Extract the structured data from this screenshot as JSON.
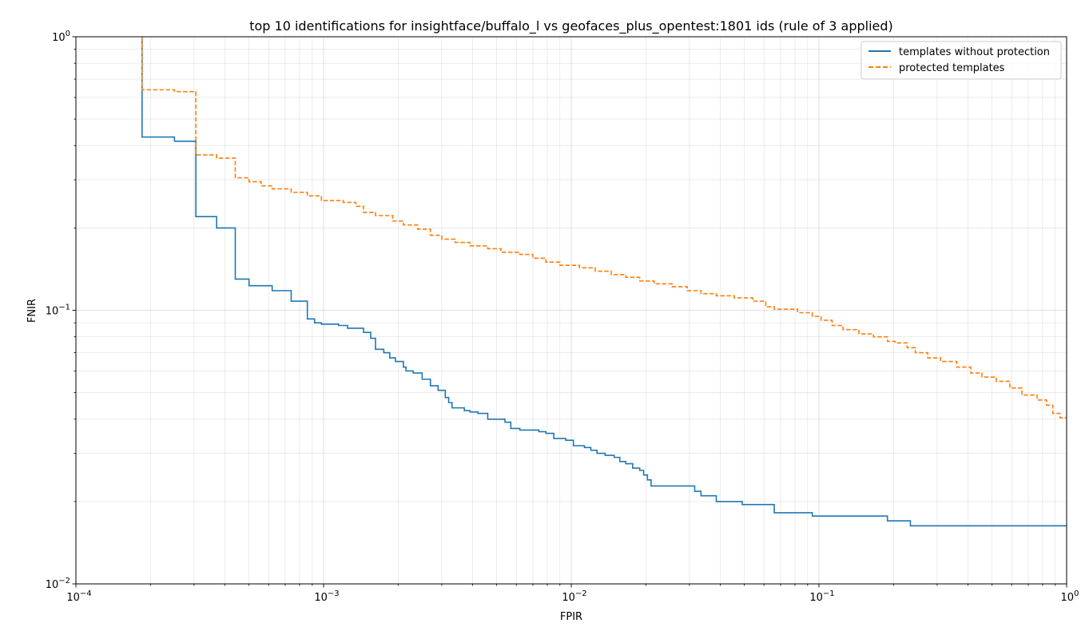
{
  "chart_data": {
    "type": "line",
    "title": "top 10 identifications for insightface/buffalo_l vs geofaces_plus_opentest:1801 ids (rule of 3 applied)",
    "xlabel": "FPIR",
    "ylabel": "FNIR",
    "xscale": "log",
    "yscale": "log",
    "xlim": [
      0.0001,
      1
    ],
    "ylim": [
      0.01,
      1
    ],
    "grid": true,
    "legend_position": "top-right",
    "x_ticks": [
      {
        "value": 0.0001,
        "base": "10",
        "exp": "−4"
      },
      {
        "value": 0.001,
        "base": "10",
        "exp": "−3"
      },
      {
        "value": 0.01,
        "base": "10",
        "exp": "−2"
      },
      {
        "value": 0.1,
        "base": "10",
        "exp": "−1"
      },
      {
        "value": 1,
        "base": "10",
        "exp": "0"
      }
    ],
    "y_ticks": [
      {
        "value": 0.01,
        "base": "10",
        "exp": "−2"
      },
      {
        "value": 0.1,
        "base": "10",
        "exp": "−1"
      },
      {
        "value": 1,
        "base": "10",
        "exp": "0"
      }
    ],
    "series": [
      {
        "name": "templates without protection",
        "color": "#1f77b4",
        "style": "solid",
        "points": [
          [
            0.000185,
            1.0
          ],
          [
            0.000185,
            0.43
          ],
          [
            0.00025,
            0.43
          ],
          [
            0.00025,
            0.415
          ],
          [
            0.000305,
            0.415
          ],
          [
            0.000305,
            0.22
          ],
          [
            0.00037,
            0.22
          ],
          [
            0.00037,
            0.2
          ],
          [
            0.00044,
            0.2
          ],
          [
            0.00044,
            0.13
          ],
          [
            0.0005,
            0.13
          ],
          [
            0.0005,
            0.123
          ],
          [
            0.00062,
            0.123
          ],
          [
            0.00062,
            0.118
          ],
          [
            0.00074,
            0.118
          ],
          [
            0.00074,
            0.108
          ],
          [
            0.00086,
            0.108
          ],
          [
            0.00086,
            0.093
          ],
          [
            0.00092,
            0.093
          ],
          [
            0.00092,
            0.09
          ],
          [
            0.00098,
            0.09
          ],
          [
            0.00098,
            0.089
          ],
          [
            0.00115,
            0.089
          ],
          [
            0.00115,
            0.088
          ],
          [
            0.00125,
            0.088
          ],
          [
            0.00125,
            0.086
          ],
          [
            0.00145,
            0.086
          ],
          [
            0.00145,
            0.083
          ],
          [
            0.00155,
            0.083
          ],
          [
            0.00155,
            0.079
          ],
          [
            0.00162,
            0.079
          ],
          [
            0.00162,
            0.072
          ],
          [
            0.00175,
            0.072
          ],
          [
            0.00175,
            0.07
          ],
          [
            0.00185,
            0.07
          ],
          [
            0.00185,
            0.067
          ],
          [
            0.00195,
            0.067
          ],
          [
            0.00195,
            0.065
          ],
          [
            0.0021,
            0.065
          ],
          [
            0.0021,
            0.062
          ],
          [
            0.00215,
            0.062
          ],
          [
            0.00215,
            0.06
          ],
          [
            0.0023,
            0.06
          ],
          [
            0.0023,
            0.059
          ],
          [
            0.0025,
            0.059
          ],
          [
            0.0025,
            0.056
          ],
          [
            0.0027,
            0.056
          ],
          [
            0.0027,
            0.053
          ],
          [
            0.0029,
            0.053
          ],
          [
            0.0029,
            0.051
          ],
          [
            0.0031,
            0.051
          ],
          [
            0.0031,
            0.048
          ],
          [
            0.0032,
            0.048
          ],
          [
            0.0032,
            0.046
          ],
          [
            0.0033,
            0.046
          ],
          [
            0.0033,
            0.044
          ],
          [
            0.0037,
            0.044
          ],
          [
            0.0037,
            0.043
          ],
          [
            0.0039,
            0.043
          ],
          [
            0.0039,
            0.0425
          ],
          [
            0.0042,
            0.0425
          ],
          [
            0.0042,
            0.042
          ],
          [
            0.0046,
            0.042
          ],
          [
            0.0046,
            0.04
          ],
          [
            0.0054,
            0.04
          ],
          [
            0.0054,
            0.039
          ],
          [
            0.0057,
            0.039
          ],
          [
            0.0057,
            0.037
          ],
          [
            0.0062,
            0.037
          ],
          [
            0.0062,
            0.0365
          ],
          [
            0.0074,
            0.0365
          ],
          [
            0.0074,
            0.036
          ],
          [
            0.0079,
            0.036
          ],
          [
            0.0079,
            0.0355
          ],
          [
            0.0085,
            0.0355
          ],
          [
            0.0085,
            0.034
          ],
          [
            0.0095,
            0.034
          ],
          [
            0.0095,
            0.0335
          ],
          [
            0.0102,
            0.0335
          ],
          [
            0.0102,
            0.032
          ],
          [
            0.0113,
            0.032
          ],
          [
            0.0113,
            0.0315
          ],
          [
            0.012,
            0.0315
          ],
          [
            0.012,
            0.0308
          ],
          [
            0.0127,
            0.0308
          ],
          [
            0.0127,
            0.03
          ],
          [
            0.0137,
            0.03
          ],
          [
            0.0137,
            0.0295
          ],
          [
            0.0149,
            0.0295
          ],
          [
            0.0149,
            0.029
          ],
          [
            0.0157,
            0.029
          ],
          [
            0.0157,
            0.028
          ],
          [
            0.0166,
            0.028
          ],
          [
            0.0166,
            0.0275
          ],
          [
            0.0177,
            0.0275
          ],
          [
            0.0177,
            0.0265
          ],
          [
            0.0189,
            0.0265
          ],
          [
            0.0189,
            0.026
          ],
          [
            0.0196,
            0.026
          ],
          [
            0.0196,
            0.025
          ],
          [
            0.0203,
            0.025
          ],
          [
            0.0203,
            0.024
          ],
          [
            0.021,
            0.024
          ],
          [
            0.021,
            0.0228
          ],
          [
            0.0315,
            0.0228
          ],
          [
            0.0315,
            0.0218
          ],
          [
            0.0334,
            0.0218
          ],
          [
            0.0334,
            0.021
          ],
          [
            0.0385,
            0.021
          ],
          [
            0.0385,
            0.02
          ],
          [
            0.049,
            0.02
          ],
          [
            0.049,
            0.0195
          ],
          [
            0.066,
            0.0195
          ],
          [
            0.066,
            0.0182
          ],
          [
            0.094,
            0.0182
          ],
          [
            0.094,
            0.0177
          ],
          [
            0.189,
            0.0177
          ],
          [
            0.189,
            0.017
          ],
          [
            0.234,
            0.017
          ],
          [
            0.234,
            0.0163
          ],
          [
            1.0,
            0.0163
          ]
        ]
      },
      {
        "name": "protected templates",
        "color": "#ff7f0e",
        "style": "dashed",
        "points": [
          [
            0.000185,
            1.0
          ],
          [
            0.000185,
            0.64
          ],
          [
            0.00025,
            0.64
          ],
          [
            0.00025,
            0.63
          ],
          [
            0.000305,
            0.63
          ],
          [
            0.000305,
            0.37
          ],
          [
            0.00037,
            0.37
          ],
          [
            0.00037,
            0.36
          ],
          [
            0.00044,
            0.36
          ],
          [
            0.00044,
            0.305
          ],
          [
            0.0005,
            0.305
          ],
          [
            0.0005,
            0.295
          ],
          [
            0.00056,
            0.295
          ],
          [
            0.00056,
            0.285
          ],
          [
            0.00062,
            0.285
          ],
          [
            0.00062,
            0.278
          ],
          [
            0.00074,
            0.278
          ],
          [
            0.00074,
            0.27
          ],
          [
            0.00086,
            0.27
          ],
          [
            0.00086,
            0.262
          ],
          [
            0.00098,
            0.262
          ],
          [
            0.00098,
            0.252
          ],
          [
            0.0012,
            0.252
          ],
          [
            0.0012,
            0.248
          ],
          [
            0.00135,
            0.248
          ],
          [
            0.00135,
            0.24
          ],
          [
            0.00145,
            0.24
          ],
          [
            0.00145,
            0.228
          ],
          [
            0.00162,
            0.228
          ],
          [
            0.00162,
            0.222
          ],
          [
            0.0019,
            0.222
          ],
          [
            0.0019,
            0.212
          ],
          [
            0.0021,
            0.212
          ],
          [
            0.0021,
            0.205
          ],
          [
            0.0024,
            0.205
          ],
          [
            0.0024,
            0.198
          ],
          [
            0.0027,
            0.198
          ],
          [
            0.0027,
            0.188
          ],
          [
            0.003,
            0.188
          ],
          [
            0.003,
            0.182
          ],
          [
            0.0034,
            0.182
          ],
          [
            0.0034,
            0.177
          ],
          [
            0.0039,
            0.177
          ],
          [
            0.0039,
            0.172
          ],
          [
            0.0046,
            0.172
          ],
          [
            0.0046,
            0.168
          ],
          [
            0.0052,
            0.168
          ],
          [
            0.0052,
            0.163
          ],
          [
            0.0062,
            0.163
          ],
          [
            0.0062,
            0.16
          ],
          [
            0.007,
            0.16
          ],
          [
            0.007,
            0.155
          ],
          [
            0.0079,
            0.155
          ],
          [
            0.0079,
            0.15
          ],
          [
            0.009,
            0.15
          ],
          [
            0.009,
            0.146
          ],
          [
            0.0108,
            0.146
          ],
          [
            0.0108,
            0.143
          ],
          [
            0.0125,
            0.143
          ],
          [
            0.0125,
            0.139
          ],
          [
            0.0145,
            0.139
          ],
          [
            0.0145,
            0.135
          ],
          [
            0.0166,
            0.135
          ],
          [
            0.0166,
            0.132
          ],
          [
            0.0189,
            0.132
          ],
          [
            0.0189,
            0.128
          ],
          [
            0.0216,
            0.128
          ],
          [
            0.0216,
            0.125
          ],
          [
            0.0255,
            0.125
          ],
          [
            0.0255,
            0.122
          ],
          [
            0.0294,
            0.122
          ],
          [
            0.0294,
            0.118
          ],
          [
            0.0334,
            0.118
          ],
          [
            0.0334,
            0.115
          ],
          [
            0.0385,
            0.115
          ],
          [
            0.0385,
            0.113
          ],
          [
            0.0455,
            0.113
          ],
          [
            0.0455,
            0.111
          ],
          [
            0.054,
            0.111
          ],
          [
            0.054,
            0.108
          ],
          [
            0.061,
            0.108
          ],
          [
            0.061,
            0.103
          ],
          [
            0.066,
            0.103
          ],
          [
            0.066,
            0.101
          ],
          [
            0.082,
            0.101
          ],
          [
            0.082,
            0.098
          ],
          [
            0.094,
            0.098
          ],
          [
            0.094,
            0.095
          ],
          [
            0.102,
            0.095
          ],
          [
            0.102,
            0.092
          ],
          [
            0.113,
            0.092
          ],
          [
            0.113,
            0.088
          ],
          [
            0.125,
            0.088
          ],
          [
            0.125,
            0.085
          ],
          [
            0.145,
            0.085
          ],
          [
            0.145,
            0.082
          ],
          [
            0.166,
            0.082
          ],
          [
            0.166,
            0.08
          ],
          [
            0.189,
            0.08
          ],
          [
            0.189,
            0.077
          ],
          [
            0.203,
            0.077
          ],
          [
            0.203,
            0.076
          ],
          [
            0.227,
            0.076
          ],
          [
            0.227,
            0.073
          ],
          [
            0.245,
            0.073
          ],
          [
            0.245,
            0.07
          ],
          [
            0.275,
            0.07
          ],
          [
            0.275,
            0.067
          ],
          [
            0.31,
            0.067
          ],
          [
            0.31,
            0.065
          ],
          [
            0.36,
            0.065
          ],
          [
            0.36,
            0.062
          ],
          [
            0.41,
            0.062
          ],
          [
            0.41,
            0.059
          ],
          [
            0.455,
            0.059
          ],
          [
            0.455,
            0.057
          ],
          [
            0.52,
            0.057
          ],
          [
            0.52,
            0.055
          ],
          [
            0.59,
            0.055
          ],
          [
            0.59,
            0.052
          ],
          [
            0.66,
            0.052
          ],
          [
            0.66,
            0.049
          ],
          [
            0.76,
            0.049
          ],
          [
            0.76,
            0.047
          ],
          [
            0.83,
            0.047
          ],
          [
            0.83,
            0.045
          ],
          [
            0.88,
            0.045
          ],
          [
            0.88,
            0.042
          ],
          [
            0.94,
            0.042
          ],
          [
            0.94,
            0.0405
          ],
          [
            1.0,
            0.0405
          ]
        ]
      }
    ]
  }
}
